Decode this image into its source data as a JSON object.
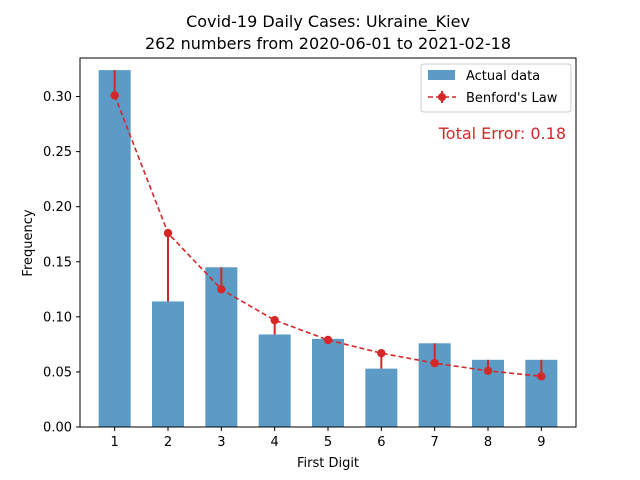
{
  "chart_data": {
    "type": "bar",
    "title_line1": "Covid-19 Daily Cases: Ukraine_Kiev",
    "title_line2": "262 numbers from 2020-06-01 to 2021-02-18",
    "xlabel": "First Digit",
    "ylabel": "Frequency",
    "categories": [
      "1",
      "2",
      "3",
      "4",
      "5",
      "6",
      "7",
      "8",
      "9"
    ],
    "ylim": [
      0,
      0.335
    ],
    "yticks": [
      0.0,
      0.05,
      0.1,
      0.15,
      0.2,
      0.25,
      0.3
    ],
    "ytick_labels": [
      "0.00",
      "0.05",
      "0.10",
      "0.15",
      "0.20",
      "0.25",
      "0.30"
    ],
    "series": [
      {
        "name": "Actual data",
        "kind": "bar",
        "color": "#5b9bc6",
        "values": [
          0.324,
          0.114,
          0.145,
          0.084,
          0.08,
          0.053,
          0.076,
          0.061,
          0.061
        ]
      },
      {
        "name": "Benford's Law",
        "kind": "line-errorbar",
        "color": "#d62728",
        "values": [
          0.301,
          0.176,
          0.125,
          0.097,
          0.079,
          0.067,
          0.058,
          0.051,
          0.046
        ]
      }
    ],
    "legend_position": "upper right",
    "annotation": {
      "text": "Total Error: 0.18",
      "color": "#d62728"
    },
    "grid": false
  }
}
